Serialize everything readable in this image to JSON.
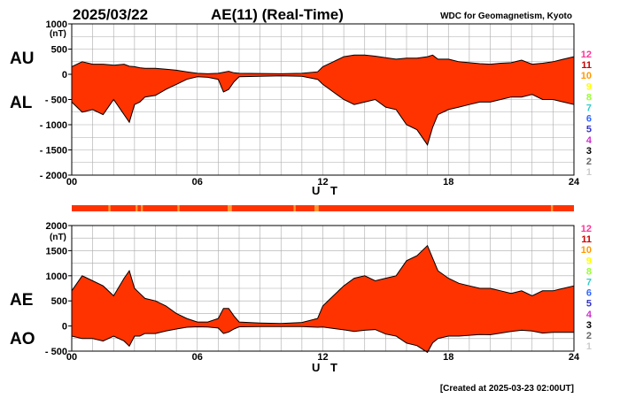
{
  "header": {
    "date": "2025/03/22",
    "title": "AE(11) (Real-Time)",
    "source": "WDC for Geomagnetism, Kyoto"
  },
  "footer": {
    "created": "[Created at 2025-03-23 02:00UT]"
  },
  "legend": {
    "labels": [
      "12",
      "11",
      "10",
      "9",
      "8",
      "7",
      "6",
      "5",
      "4",
      "3",
      "2",
      "1"
    ],
    "colors": [
      "#ff3399",
      "#cc0000",
      "#ff9900",
      "#ffff00",
      "#99ff33",
      "#33cccc",
      "#3366ff",
      "#3333cc",
      "#cc33cc",
      "#000000",
      "#666666",
      "#cccccc"
    ]
  },
  "colors": {
    "fill": "#ff3300",
    "fill_lowcount": "#ff9933",
    "line": "#000000",
    "grid": "#aaaaaa",
    "bar": "#ff3300"
  },
  "chart_data": [
    {
      "type": "area",
      "panel": "top",
      "series_labels": [
        "AU",
        "AL"
      ],
      "ylabel": "(nT)",
      "xlabel": "U T",
      "xlim": [
        0,
        24
      ],
      "ylim": [
        -2000,
        1000
      ],
      "yticks": [
        1000,
        500,
        0,
        -500,
        -1000,
        -1500,
        -2000
      ],
      "ytick_labels": [
        "1000",
        "500",
        "0",
        "- 500",
        "- 1000",
        "- 1500",
        "- 2000"
      ],
      "xticks": [
        0,
        6,
        12,
        18,
        24
      ],
      "xtick_labels": [
        "00",
        "06",
        "12",
        "18",
        "24"
      ],
      "x": [
        0,
        0.5,
        1,
        1.5,
        2,
        2.5,
        2.75,
        3,
        3.25,
        3.5,
        4,
        4.5,
        5,
        5.5,
        6,
        6.5,
        7,
        7.25,
        7.5,
        7.75,
        8,
        9,
        10,
        11,
        11.75,
        12,
        12.5,
        13,
        13.5,
        14,
        14.5,
        15,
        15.5,
        16,
        16.5,
        17,
        17.25,
        17.5,
        18,
        18.5,
        19,
        19.5,
        20,
        20.5,
        21,
        21.5,
        22,
        22.5,
        23,
        23.5,
        24
      ],
      "au": [
        150,
        250,
        200,
        200,
        180,
        200,
        160,
        150,
        130,
        120,
        120,
        100,
        80,
        50,
        20,
        10,
        20,
        40,
        60,
        30,
        20,
        15,
        10,
        20,
        50,
        150,
        250,
        350,
        380,
        380,
        360,
        330,
        300,
        320,
        320,
        350,
        380,
        300,
        300,
        250,
        230,
        210,
        200,
        220,
        230,
        280,
        200,
        220,
        250,
        300,
        350
      ],
      "al": [
        -550,
        -750,
        -700,
        -800,
        -500,
        -800,
        -950,
        -600,
        -550,
        -450,
        -420,
        -300,
        -200,
        -100,
        -50,
        -60,
        -100,
        -350,
        -300,
        -150,
        -50,
        -40,
        -30,
        -40,
        -100,
        -200,
        -350,
        -500,
        -600,
        -550,
        -500,
        -650,
        -700,
        -1000,
        -1100,
        -1400,
        -1050,
        -800,
        -700,
        -650,
        -600,
        -550,
        -550,
        -500,
        -450,
        -450,
        -400,
        -500,
        -500,
        -550,
        -600
      ]
    },
    {
      "type": "area",
      "panel": "bottom",
      "series_labels": [
        "AE",
        "AO"
      ],
      "ylabel": "(nT)",
      "xlabel": "U T",
      "xlim": [
        0,
        24
      ],
      "ylim": [
        -500,
        2000
      ],
      "yticks": [
        2000,
        1500,
        1000,
        500,
        0,
        -500
      ],
      "ytick_labels": [
        "2000",
        "1500",
        "1000",
        "500",
        "0",
        "- 500"
      ],
      "xticks": [
        0,
        6,
        12,
        18,
        24
      ],
      "xtick_labels": [
        "00",
        "06",
        "12",
        "18",
        "24"
      ],
      "x": [
        0,
        0.5,
        1,
        1.5,
        2,
        2.5,
        2.75,
        3,
        3.25,
        3.5,
        4,
        4.5,
        5,
        5.5,
        6,
        6.5,
        7,
        7.25,
        7.5,
        7.75,
        8,
        9,
        10,
        11,
        11.75,
        12,
        12.5,
        13,
        13.5,
        14,
        14.5,
        15,
        15.5,
        16,
        16.5,
        17,
        17.25,
        17.5,
        18,
        18.5,
        19,
        19.5,
        20,
        20.5,
        21,
        21.5,
        22,
        22.5,
        23,
        23.5,
        24
      ],
      "ae": [
        700,
        1000,
        900,
        800,
        600,
        950,
        1100,
        750,
        650,
        550,
        500,
        400,
        250,
        150,
        80,
        80,
        150,
        350,
        350,
        200,
        80,
        60,
        50,
        70,
        150,
        400,
        600,
        800,
        950,
        1000,
        900,
        950,
        1000,
        1300,
        1400,
        1600,
        1350,
        1100,
        950,
        850,
        800,
        750,
        750,
        700,
        650,
        700,
        600,
        700,
        700,
        750,
        800
      ],
      "ao": [
        -200,
        -250,
        -250,
        -300,
        -200,
        -300,
        -400,
        -200,
        -200,
        -150,
        -150,
        -100,
        -60,
        -25,
        -15,
        -20,
        -40,
        -150,
        -120,
        -60,
        -15,
        -10,
        -10,
        -10,
        -25,
        -20,
        -50,
        -75,
        -110,
        -85,
        -70,
        -160,
        -200,
        -340,
        -390,
        -525,
        -335,
        -250,
        -200,
        -200,
        -185,
        -170,
        -175,
        -140,
        -110,
        -85,
        -100,
        -140,
        -125,
        -125,
        -125
      ]
    }
  ],
  "station_bands": {
    "note": "UT intervals where fewer stations were used (lighter vertical bands)",
    "intervals": [
      [
        1.75,
        1.85
      ],
      [
        3.05,
        3.15
      ],
      [
        3.3,
        3.4
      ],
      [
        5.05,
        5.15
      ],
      [
        7.45,
        7.65
      ],
      [
        10.6,
        10.7
      ],
      [
        11.6,
        11.8
      ],
      [
        22.9,
        23.0
      ]
    ]
  }
}
